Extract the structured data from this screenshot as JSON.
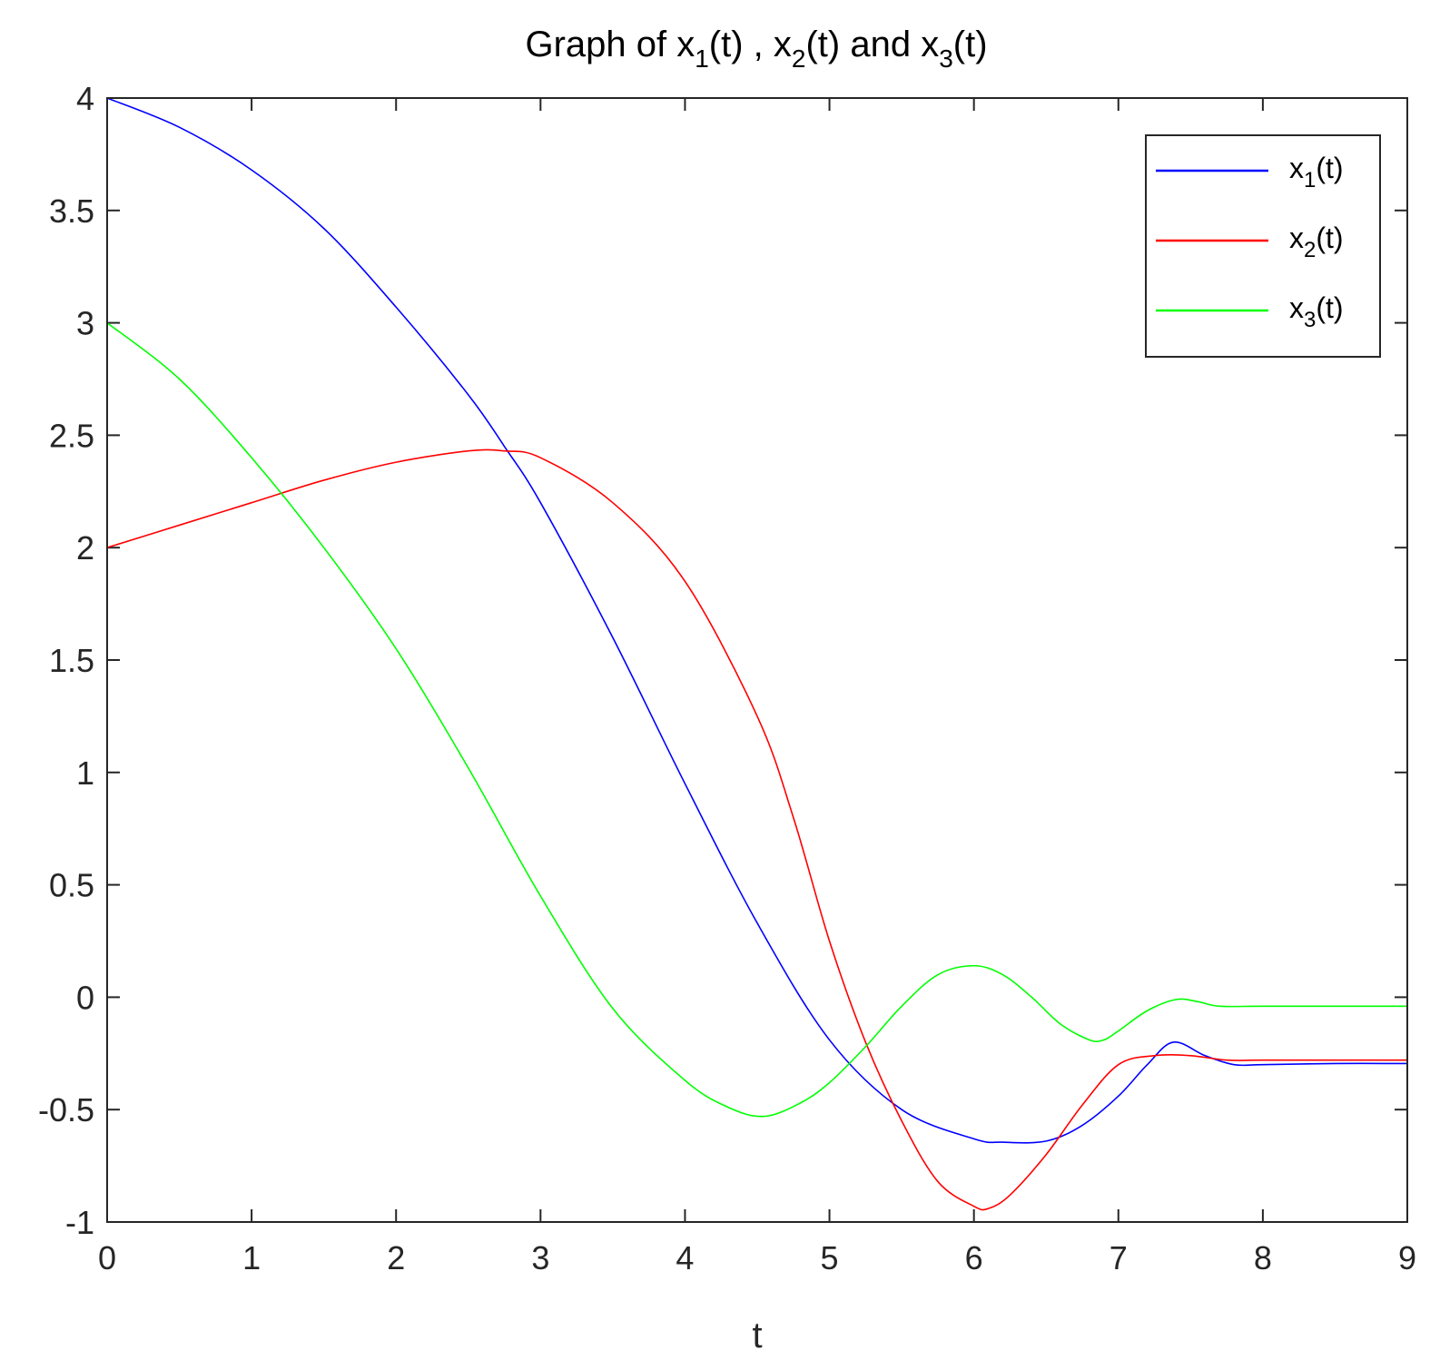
{
  "chart_data": {
    "type": "line",
    "title": {
      "prefix": "Graph of x",
      "sub1": "1",
      "mid1": "(t) , x",
      "sub2": "2",
      "mid2": "(t) and x",
      "sub3": "3",
      "suffix": "(t)"
    },
    "xlabel": "t",
    "ylabel": "",
    "xlim": [
      0,
      9
    ],
    "ylim": [
      -1,
      4
    ],
    "xticks": [
      "0",
      "1",
      "2",
      "3",
      "4",
      "5",
      "6",
      "7",
      "8",
      "9"
    ],
    "yticks": [
      "-1",
      "-0.5",
      "0",
      "0.5",
      "1",
      "1.5",
      "2",
      "2.5",
      "3",
      "3.5",
      "4"
    ],
    "grid": false,
    "legend_position": "top-right",
    "series": [
      {
        "name": "x(t)",
        "legend_base": "x",
        "legend_sub": "1",
        "legend_suffix": "(t)",
        "color": "#0000ff",
        "x": [
          0,
          0.5,
          1.0,
          1.5,
          2.0,
          2.5,
          2.75,
          3.0,
          3.5,
          4.0,
          4.5,
          5.0,
          5.5,
          6.0,
          6.2,
          6.5,
          6.75,
          7.0,
          7.2,
          7.38,
          7.6,
          7.8,
          8.0,
          8.5,
          9.0
        ],
        "y": [
          4.0,
          3.87,
          3.68,
          3.42,
          3.07,
          2.68,
          2.45,
          2.2,
          1.6,
          0.95,
          0.33,
          -0.19,
          -0.5,
          -0.63,
          -0.645,
          -0.64,
          -0.57,
          -0.44,
          -0.3,
          -0.2,
          -0.26,
          -0.3,
          -0.3,
          -0.295,
          -0.295
        ]
      },
      {
        "name": "x(t)",
        "legend_base": "x",
        "legend_sub": "2",
        "legend_suffix": "(t)",
        "color": "#ff0000",
        "x": [
          0,
          0.5,
          1.0,
          1.5,
          2.0,
          2.5,
          2.75,
          3.0,
          3.5,
          4.0,
          4.5,
          4.75,
          5.0,
          5.25,
          5.5,
          5.75,
          6.0,
          6.1,
          6.25,
          6.5,
          6.75,
          7.0,
          7.25,
          7.5,
          7.75,
          8.0,
          8.5,
          9.0
        ],
        "y": [
          2.0,
          2.1,
          2.2,
          2.3,
          2.38,
          2.43,
          2.43,
          2.4,
          2.2,
          1.85,
          1.25,
          0.8,
          0.25,
          -0.2,
          -0.55,
          -0.82,
          -0.93,
          -0.94,
          -0.88,
          -0.7,
          -0.48,
          -0.3,
          -0.26,
          -0.26,
          -0.28,
          -0.28,
          -0.28,
          -0.28
        ]
      },
      {
        "name": "x(t)",
        "legend_base": "x",
        "legend_sub": "3",
        "legend_suffix": "(t)",
        "color": "#00ff00",
        "x": [
          0,
          0.5,
          1.0,
          1.5,
          2.0,
          2.5,
          3.0,
          3.5,
          4.0,
          4.3,
          4.55,
          4.8,
          5.0,
          5.25,
          5.5,
          5.75,
          6.0,
          6.2,
          6.4,
          6.6,
          6.8,
          6.9,
          7.0,
          7.2,
          7.4,
          7.55,
          7.7,
          8.0,
          8.5,
          9.0
        ],
        "y": [
          3.0,
          2.75,
          2.4,
          2.0,
          1.55,
          1.02,
          0.45,
          -0.05,
          -0.37,
          -0.49,
          -0.53,
          -0.47,
          -0.38,
          -0.22,
          -0.04,
          0.1,
          0.14,
          0.1,
          0.0,
          -0.12,
          -0.19,
          -0.19,
          -0.15,
          -0.06,
          -0.01,
          -0.02,
          -0.04,
          -0.04,
          -0.04,
          -0.04
        ]
      }
    ]
  }
}
